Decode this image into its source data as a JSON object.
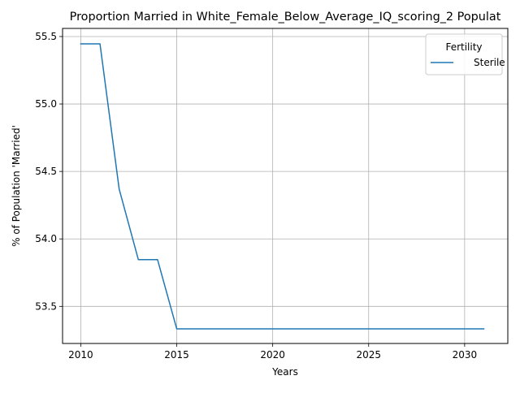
{
  "chart_data": {
    "type": "line",
    "title": "Proportion Married in White_Female_Below_Average_IQ_scoring_2 Populat",
    "xlabel": "Years",
    "ylabel": "% of Population 'Married'",
    "xlim": [
      2009.05,
      2032.25
    ],
    "ylim": [
      53.225,
      55.56
    ],
    "xticks": [
      2010,
      2015,
      2020,
      2025,
      2030
    ],
    "yticks": [
      53.5,
      54.0,
      54.5,
      55.0,
      55.5
    ],
    "xtick_labels": [
      "2010",
      "2015",
      "2020",
      "2025",
      "2030"
    ],
    "ytick_labels": [
      "53.5",
      "54.0",
      "54.5",
      "55.0",
      "55.5"
    ],
    "grid": true,
    "legend": {
      "title": "Fertility",
      "position": "top-right"
    },
    "series": [
      {
        "name": "Sterile",
        "color": "#1f77b4",
        "x": [
          2010,
          2011,
          2012,
          2013,
          2014,
          2015,
          2016,
          2017,
          2018,
          2019,
          2020,
          2021,
          2022,
          2023,
          2024,
          2025,
          2026,
          2027,
          2028,
          2029,
          2030,
          2031
        ],
        "y": [
          55.446,
          55.446,
          54.369,
          53.846,
          53.846,
          53.333,
          53.333,
          53.333,
          53.333,
          53.333,
          53.333,
          53.333,
          53.333,
          53.333,
          53.333,
          53.333,
          53.333,
          53.333,
          53.333,
          53.333,
          53.333,
          53.333
        ]
      }
    ]
  }
}
